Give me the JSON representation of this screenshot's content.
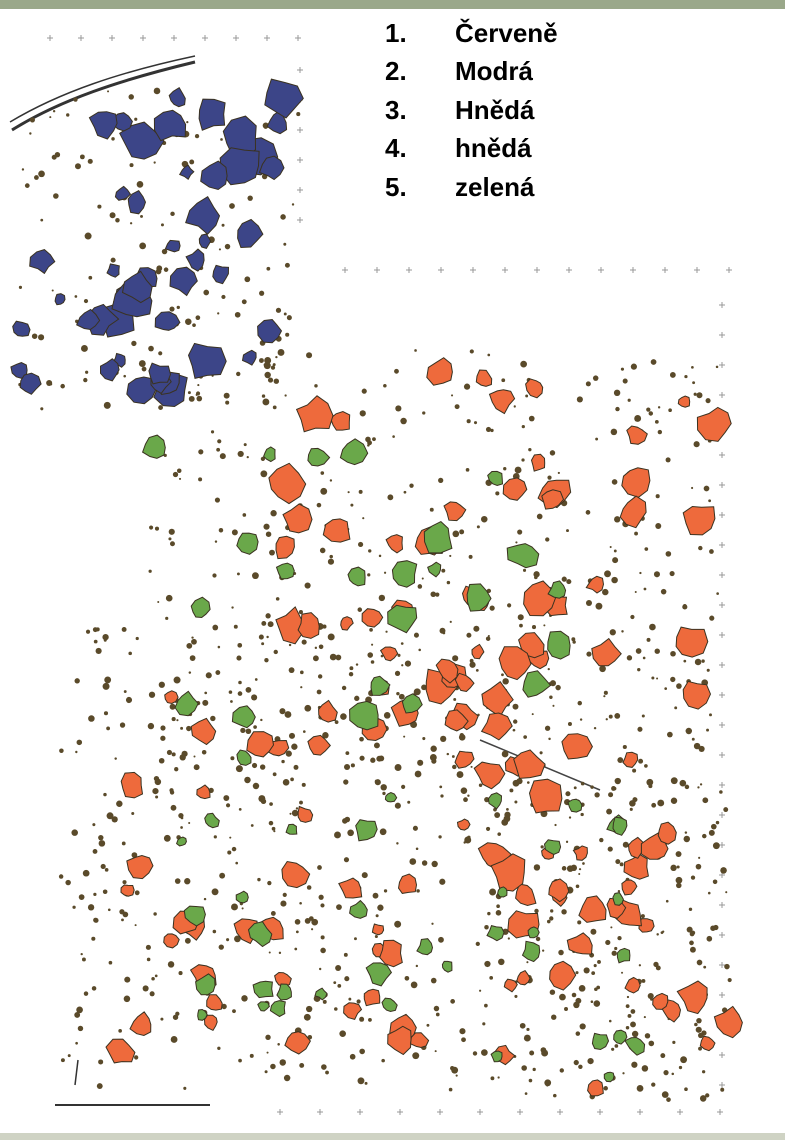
{
  "legend": {
    "items": [
      {
        "number": "1.",
        "label": "Červeně"
      },
      {
        "number": "2.",
        "label": "Modrá"
      },
      {
        "number": "3.",
        "label": "Hnědá"
      },
      {
        "number": "4.",
        "label": "hnědá"
      },
      {
        "number": "5.",
        "label": "zelená"
      }
    ]
  }
}
